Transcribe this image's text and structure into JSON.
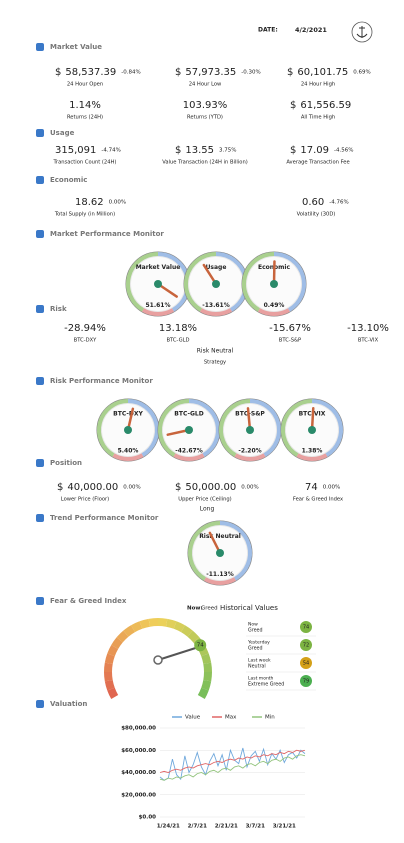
{
  "header": {
    "date_label": "DATE:",
    "date": "4/2/2021"
  },
  "market_value": {
    "title": "Market Value",
    "metrics": [
      {
        "prefix": "$",
        "value": "58,537.39",
        "change": "-0.84%",
        "label": "24 Hour Open"
      },
      {
        "prefix": "$",
        "value": "57,973.35",
        "change": "-0.30%",
        "label": "24 Hour Low"
      },
      {
        "prefix": "$",
        "value": "60,101.75",
        "change": "0.69%",
        "label": "24 Hour High"
      },
      {
        "value": "1.14%",
        "label": "Returns (24H)",
        "color": "#3a9a4a"
      },
      {
        "value": "103.93%",
        "label": "Returns (YTD)",
        "color": "#3a9a4a"
      },
      {
        "prefix": "$",
        "value": "61,556.59",
        "label": "All Time High"
      }
    ]
  },
  "usage": {
    "title": "Usage",
    "metrics": [
      {
        "value": "315,091",
        "change": "-4.74%",
        "label": "Transaction Count (24H)"
      },
      {
        "prefix": "$",
        "value": "13.55",
        "change": "3.75%",
        "label": "Value Transaction (24H in Billion)"
      },
      {
        "prefix": "$",
        "value": "17.09",
        "change": "-4.56%",
        "label": "Average Transaction Fee"
      }
    ]
  },
  "economic": {
    "title": "Economic",
    "metrics": [
      {
        "value": "18.62",
        "change": "0.00%",
        "label": "Total Supply (in Million)"
      },
      {
        "value": "0.60",
        "change": "-4.76%",
        "label": "Volatility (30D)"
      }
    ]
  },
  "market_performance": {
    "title": "Market Performance Monitor",
    "gauges": [
      {
        "name": "Market Value",
        "reading": {
          "value": 51.61,
          "label": "51.61%"
        }
      },
      {
        "name": "Usage",
        "reading": {
          "value": -13.61,
          "label": "-13.61%"
        }
      },
      {
        "name": "Economic",
        "reading": {
          "value": 0.49,
          "label": "0.49%"
        }
      }
    ]
  },
  "risk": {
    "title": "Risk",
    "metrics": [
      {
        "value": "-28.94%",
        "label": "BTC-DXY",
        "color": "#d0443a"
      },
      {
        "value": "13.18%",
        "label": "BTC-GLD",
        "color": "#3a9a4a"
      },
      {
        "value": "-15.67%",
        "label": "BTC-S&P",
        "color": "#d0443a"
      },
      {
        "value": "-13.10%",
        "label": "BTC-VIX",
        "color": "#d0443a"
      }
    ],
    "strategy": "Risk Neutral",
    "strategy_label": "Strategy"
  },
  "risk_performance": {
    "title": "Risk Performance Monitor",
    "gauges": [
      {
        "name": "BTC-DXY",
        "reading": {
          "value": 5.4,
          "label": "5.40%"
        }
      },
      {
        "name": "BTC-GLD",
        "reading": {
          "value": -42.67,
          "label": "-42.67%"
        }
      },
      {
        "name": "BTC-S&P",
        "reading": {
          "value": -2.2,
          "label": "-2.20%"
        }
      },
      {
        "name": "BTC-VIX",
        "reading": {
          "value": 1.38,
          "label": "1.38%"
        }
      }
    ]
  },
  "position": {
    "title": "Position",
    "metrics": [
      {
        "prefix": "$",
        "value": "40,000.00",
        "change": "0.00%",
        "label": "Lower Price (Floor)"
      },
      {
        "prefix": "$",
        "value": "50,000.00",
        "change": "0.00%",
        "label": "Upper Price (Ceiling)"
      },
      {
        "value": "74",
        "change": "0.00%",
        "label": "Fear & Greed Index"
      }
    ],
    "direction": "Long"
  },
  "trend_performance": {
    "title": "Trend Performance Monitor",
    "gauges": [
      {
        "name": "Risk Neutral",
        "reading": {
          "value": -11.13,
          "label": "-11.13%"
        }
      }
    ]
  },
  "fear_greed": {
    "title": "Fear & Greed Index",
    "value": 74,
    "now_label": "Now:",
    "now_class": "Greed",
    "history_title": "Historical Values",
    "history": [
      {
        "period": "Now",
        "class": "Greed",
        "value": 74
      },
      {
        "period": "Yesterday",
        "class": "Greed",
        "value": 72
      },
      {
        "period": "Last week",
        "class": "Neutral",
        "value": 54
      },
      {
        "period": "Last month",
        "class": "Extreme Greed",
        "value": 79
      }
    ]
  },
  "chart_data": {
    "type": "line",
    "title": "Valuation",
    "categories": [
      null,
      null,
      "1/24/21",
      null,
      null,
      null,
      null,
      null,
      null,
      "2/7/21",
      null,
      null,
      null,
      null,
      null,
      null,
      "2/21/21",
      null,
      null,
      null,
      null,
      null,
      null,
      "3/7/21",
      null,
      null,
      null,
      null,
      null,
      null,
      "3/21/21",
      null,
      null,
      null,
      null,
      null
    ],
    "series": [
      {
        "name": "Value",
        "color": "#6fa8dc",
        "values": [
          36000,
          33000,
          35000,
          52000,
          38000,
          34000,
          55000,
          40000,
          47000,
          58000,
          45000,
          38000,
          50000,
          57000,
          46000,
          56000,
          42000,
          60000,
          51000,
          48000,
          62000,
          45000,
          55000,
          59000,
          50000,
          61000,
          47000,
          57000,
          52000,
          60000,
          49000,
          56000,
          58000,
          53000,
          60000,
          57000
        ]
      },
      {
        "name": "Max",
        "color": "#e06666",
        "values": [
          40000,
          41000,
          40000,
          42000,
          43000,
          42000,
          44000,
          45000,
          44000,
          46000,
          47000,
          48000,
          47000,
          49000,
          50000,
          49000,
          51000,
          52000,
          51000,
          53000,
          52000,
          54000,
          53000,
          55000,
          54000,
          56000,
          55000,
          57000,
          56000,
          58000,
          57000,
          59000,
          58000,
          60000,
          59000,
          60000
        ]
      },
      {
        "name": "Min",
        "color": "#93c47d",
        "values": [
          34000,
          33000,
          35000,
          34000,
          36000,
          35000,
          37000,
          38000,
          36000,
          39000,
          40000,
          38000,
          41000,
          42000,
          40000,
          43000,
          44000,
          42000,
          45000,
          46000,
          44000,
          47000,
          48000,
          46000,
          49000,
          50000,
          48000,
          51000,
          52000,
          50000,
          53000,
          54000,
          52000,
          55000,
          56000,
          55000
        ]
      }
    ],
    "ylim": [
      0,
      80000
    ],
    "yticks": [
      {
        "value": 0,
        "label": "$0.00"
      },
      {
        "value": 20000,
        "label": "$20,000.00"
      },
      {
        "value": 40000,
        "label": "$40,000.00"
      },
      {
        "value": 60000,
        "label": "$60,000.00"
      },
      {
        "value": 80000,
        "label": "$80,000.00"
      }
    ],
    "grid": true
  }
}
